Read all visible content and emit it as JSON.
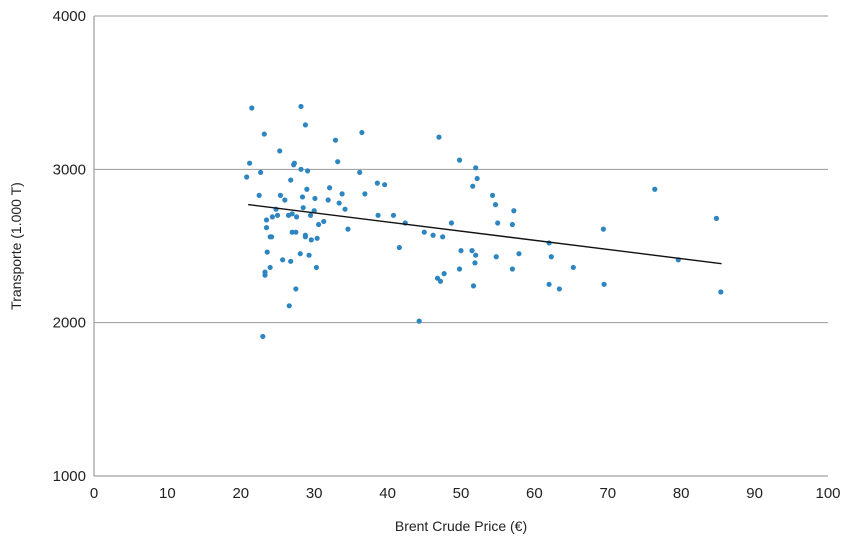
{
  "chart_data": {
    "type": "scatter",
    "title": "",
    "xlabel": "Brent Crude Price (€)",
    "ylabel": "Transporte  (1.000 T)",
    "xlim": [
      0,
      100
    ],
    "ylim": [
      1000,
      4000
    ],
    "xticks": [
      "0",
      "10",
      "20",
      "30",
      "40",
      "50",
      "60",
      "70",
      "80",
      "90",
      "100"
    ],
    "yticks": [
      "1000",
      "2000",
      "3000",
      "4000"
    ],
    "grid": "horizontal",
    "point_color": "#2e86c1",
    "trendline_color": "#111111",
    "trendline": {
      "x": [
        21,
        85.5
      ],
      "y": [
        2770,
        2385
      ]
    },
    "series": [
      {
        "x": [
          21.5,
          28.2,
          21.2,
          20.8,
          23.2,
          28.8,
          22.5,
          25.3,
          27.2,
          26.8,
          26.5,
          28.2,
          29.1,
          30.1,
          29.0,
          27.3,
          24.8,
          26.0,
          25.4,
          28.4,
          30.0,
          29.5,
          27.0,
          28.5,
          30.6,
          24.3,
          31.3,
          27.6,
          23.5,
          25.0,
          28.8,
          27.5,
          27.0,
          24.2,
          23.5,
          24.0,
          26.8,
          28.1,
          29.6,
          30.4,
          23.3,
          24.0,
          23.6,
          22.7,
          29.3,
          28.8,
          30.3,
          26.6,
          27.5,
          25.7,
          23.3,
          23.0,
          36.5,
          32.9,
          33.2,
          36.2,
          38.6,
          39.6,
          32.1,
          33.8,
          36.9,
          33.4,
          34.2,
          38.7,
          40.8,
          31.9,
          34.6,
          42.4,
          41.6,
          47.0,
          49.8,
          52.0,
          51.6,
          52.2,
          48.7,
          54.7,
          57.2,
          54.3,
          57.0,
          55.0,
          52.0,
          51.9,
          45.0,
          46.2,
          47.5,
          50.0,
          51.5,
          49.8,
          54.8,
          57.9,
          62.0,
          62.3,
          57.0,
          47.7,
          47.2,
          51.7,
          46.8,
          44.3,
          62.0,
          63.4,
          69.4,
          65.3,
          69.5,
          76.4,
          79.6,
          84.8,
          85.4
        ],
        "y": [
          3400,
          3410,
          3040,
          2950,
          3230,
          3290,
          2830,
          3120,
          3030,
          2930,
          2700,
          3000,
          2990,
          2810,
          2870,
          3040,
          2740,
          2800,
          2830,
          2820,
          2730,
          2700,
          2710,
          2750,
          2640,
          2690,
          2660,
          2690,
          2670,
          2700,
          2570,
          2590,
          2590,
          2560,
          2620,
          2560,
          2400,
          2450,
          2540,
          2550,
          2310,
          2360,
          2460,
          2980,
          2440,
          2560,
          2360,
          2110,
          2220,
          2410,
          2330,
          1910,
          3240,
          3190,
          3050,
          2980,
          2910,
          2900,
          2880,
          2840,
          2840,
          2780,
          2740,
          2700,
          2700,
          2800,
          2610,
          2650,
          2490,
          3210,
          3060,
          3010,
          2890,
          2940,
          2650,
          2770,
          2730,
          2830,
          2640,
          2650,
          2440,
          2390,
          2590,
          2570,
          2560,
          2470,
          2470,
          2350,
          2430,
          2450,
          2520,
          2430,
          2350,
          2320,
          2270,
          2240,
          2290,
          2010,
          2250,
          2220,
          2610,
          2360,
          2250,
          2870,
          2410,
          2680,
          2200
        ]
      }
    ]
  }
}
